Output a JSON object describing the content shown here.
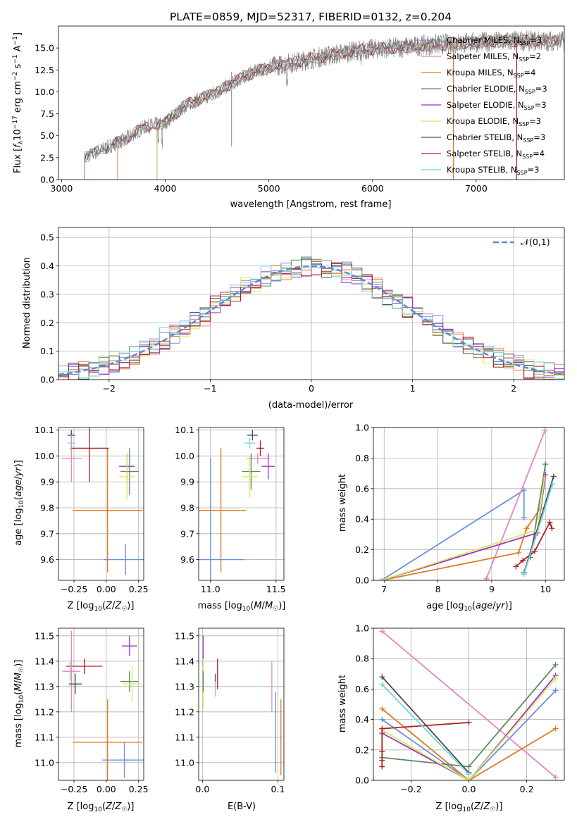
{
  "title": "PLATE=0859, MJD=52317, FIBERID=0132, z=0.204",
  "colors": {
    "Chabrier MILES": "#6a8fdf",
    "Salpeter MILES": "#e487c0",
    "Kroupa MILES": "#e07a1f",
    "Chabrier ELODIE": "#5a8a62",
    "Salpeter ELODIE": "#9f2fc2",
    "Kroupa ELODIE": "#d7ea5a",
    "Chabrier STELIB": "#4d4d4d",
    "Salpeter STELIB": "#b01f1f",
    "Kroupa STELIB": "#6fd6dc",
    "data_spectrum": "#7f7f7f"
  },
  "chart_data": [
    {
      "id": "spectrum",
      "type": "line",
      "title": "PLATE=0859, MJD=52317, FIBERID=0132, z=0.204",
      "xlabel": "wavelength [Angstrom, rest frame]",
      "ylabel": "Flux [f_λ 10^-17 erg cm^-2 s^-1 A^-1]",
      "xlim": [
        2970,
        7850
      ],
      "ylim": [
        0,
        17.5
      ],
      "xticks": [
        3000,
        4000,
        5000,
        6000,
        7000
      ],
      "yticks": [
        0.0,
        2.5,
        5.0,
        7.5,
        10.0,
        12.5,
        15.0
      ],
      "legend": "right",
      "grid": false,
      "series": [
        {
          "name": "Chabrier MILES, N_SSP=3",
          "label_base": "Chabrier MILES, N",
          "label_sub": "SSP",
          "label_end": "=3",
          "model": "Chabrier MILES",
          "start": 3540
        },
        {
          "name": "Salpeter MILES, N_SSP=2",
          "label_base": "Salpeter MILES, N",
          "label_sub": "SSP",
          "label_end": "=2",
          "model": "Salpeter MILES",
          "start": 3540
        },
        {
          "name": "Kroupa MILES, N_SSP=4",
          "label_base": "Kroupa MILES, N",
          "label_sub": "SSP",
          "label_end": "=4",
          "model": "Kroupa MILES",
          "start": 3540
        },
        {
          "name": "Chabrier ELODIE, N_SSP=3",
          "label_base": "Chabrier ELODIE, N",
          "label_sub": "SSP",
          "label_end": "=3",
          "model": "Chabrier ELODIE",
          "start": 3920
        },
        {
          "name": "Salpeter ELODIE, N_SSP=3",
          "label_base": "Salpeter ELODIE, N",
          "label_sub": "SSP",
          "label_end": "=3",
          "model": "Salpeter ELODIE",
          "start": 3920
        },
        {
          "name": "Kroupa ELODIE, N_SSP=3",
          "label_base": "Kroupa ELODIE, N",
          "label_sub": "SSP",
          "label_end": "=3",
          "model": "Kroupa ELODIE",
          "start": 3920
        },
        {
          "name": "Chabrier STELIB, N_SSP=3",
          "label_base": "Chabrier STELIB, N",
          "label_sub": "SSP",
          "label_end": "=3",
          "model": "Chabrier STELIB",
          "start": 3220
        },
        {
          "name": "Salpeter STELIB, N_SSP=4",
          "label_base": "Salpeter STELIB, N",
          "label_sub": "SSP",
          "label_end": "=4",
          "model": "Salpeter STELIB",
          "start": 3220
        },
        {
          "name": "Kroupa STELIB, N_SSP=3",
          "label_base": "Kroupa STELIB, N",
          "label_sub": "SSP",
          "label_end": "=3",
          "model": "Kroupa STELIB",
          "start": 3220
        }
      ],
      "continuum_knots": [
        [
          3220,
          2.5
        ],
        [
          3400,
          3.5
        ],
        [
          3600,
          4.5
        ],
        [
          3800,
          6.0
        ],
        [
          4000,
          6.5
        ],
        [
          4200,
          8.5
        ],
        [
          4500,
          10.0
        ],
        [
          4800,
          12.0
        ],
        [
          5000,
          12.8
        ],
        [
          5300,
          13.5
        ],
        [
          5600,
          14.2
        ],
        [
          5900,
          14.8
        ],
        [
          6200,
          15.0
        ],
        [
          6500,
          15.3
        ],
        [
          6800,
          15.5
        ],
        [
          7100,
          15.7
        ],
        [
          7400,
          15.8
        ]
      ]
    },
    {
      "id": "residuals",
      "type": "histogram",
      "xlabel": "(data-model)/error",
      "ylabel": "Normed distribution",
      "xlim": [
        -2.5,
        2.5
      ],
      "ylim": [
        0,
        0.535
      ],
      "xticks": [
        -2,
        -1,
        0,
        1,
        2
      ],
      "yticks": [
        0.0,
        0.1,
        0.2,
        0.3,
        0.4,
        0.5
      ],
      "grid": true,
      "legend": "top-right",
      "reference_label": "𝒩(0,1)",
      "reference_curve": "normal pdf, mean 0, sigma 1"
    },
    {
      "id": "z-age",
      "type": "scatter",
      "xlabel": "Z [log10(Z/Z☉)]",
      "ylabel": "age [log10(age/yr)]",
      "xlim": [
        -0.37,
        0.29
      ],
      "ylim": [
        9.52,
        10.11
      ],
      "xticks": [
        -0.25,
        0.0,
        0.25
      ],
      "yticks": [
        9.6,
        9.7,
        9.8,
        9.9,
        10.0,
        10.1
      ],
      "grid": true,
      "points": [
        {
          "model": "Chabrier MILES",
          "x": 0.15,
          "y": 9.6,
          "xerr": 0.17,
          "yerr": 0.06
        },
        {
          "model": "Kroupa MILES",
          "x": 0.01,
          "y": 9.79,
          "xerr": 0.27,
          "yerr": 0.24
        },
        {
          "model": "Chabrier STELIB",
          "x": -0.27,
          "y": 10.08,
          "xerr": 0.03,
          "yerr": 0.02
        },
        {
          "model": "Kroupa STELIB",
          "x": -0.27,
          "y": 10.05,
          "xerr": 0.03,
          "yerr": 0.02
        },
        {
          "model": "Salpeter STELIB",
          "x": -0.13,
          "y": 10.03,
          "xerr": 0.15,
          "yerr": 0.13
        },
        {
          "model": "Salpeter MILES",
          "x": -0.27,
          "y": 9.99,
          "xerr": 0.08,
          "yerr": 0.09
        },
        {
          "model": "Salpeter ELODIE",
          "x": 0.16,
          "y": 9.96,
          "xerr": 0.06,
          "yerr": 0.05
        },
        {
          "model": "Chabrier ELODIE",
          "x": 0.18,
          "y": 9.94,
          "xerr": 0.07,
          "yerr": 0.09
        },
        {
          "model": "Kroupa ELODIE",
          "x": 0.16,
          "y": 9.92,
          "xerr": 0.06,
          "yerr": 0.09
        }
      ]
    },
    {
      "id": "mass-age",
      "type": "scatter",
      "xlabel": "mass [log10(M/M☉)]",
      "ylabel": "",
      "xlim": [
        10.91,
        11.56
      ],
      "ylim": [
        9.52,
        10.11
      ],
      "xticks": [
        11.0,
        11.5
      ],
      "yticks": [
        9.6,
        9.7,
        9.8,
        9.9,
        10.0,
        10.1
      ],
      "grid": true,
      "points": [
        {
          "model": "Chabrier MILES",
          "x": 11.0,
          "y": 9.6,
          "xerr": 0.26,
          "yerr": 0.39
        },
        {
          "model": "Kroupa MILES",
          "x": 11.08,
          "y": 9.79,
          "xerr": 0.19,
          "yerr": 0.24
        },
        {
          "model": "Chabrier STELIB",
          "x": 11.32,
          "y": 10.08,
          "xerr": 0.04,
          "yerr": 0.02
        },
        {
          "model": "Kroupa STELIB",
          "x": 11.3,
          "y": 10.05,
          "xerr": 0.04,
          "yerr": 0.02
        },
        {
          "model": "Salpeter STELIB",
          "x": 11.38,
          "y": 10.03,
          "xerr": 0.03,
          "yerr": 0.03
        },
        {
          "model": "Salpeter MILES",
          "x": 11.36,
          "y": 9.99,
          "xerr": 0.08,
          "yerr": 0.02
        },
        {
          "model": "Salpeter ELODIE",
          "x": 11.44,
          "y": 9.96,
          "xerr": 0.05,
          "yerr": 0.05
        },
        {
          "model": "Chabrier ELODIE",
          "x": 11.31,
          "y": 9.94,
          "xerr": 0.07,
          "yerr": 0.07
        },
        {
          "model": "Kroupa ELODIE",
          "x": 11.3,
          "y": 9.92,
          "xerr": 0.06,
          "yerr": 0.08
        }
      ]
    },
    {
      "id": "age-weight",
      "type": "line",
      "xlabel": "age [log10(age/yr)]",
      "ylabel": "mass weight",
      "xlim": [
        6.8,
        10.35
      ],
      "ylim": [
        0,
        1.0
      ],
      "xticks": [
        7,
        8,
        9,
        10
      ],
      "yticks": [
        0.0,
        0.2,
        0.4,
        0.6,
        0.8,
        1.0
      ],
      "grid": true,
      "series": [
        {
          "model": "Chabrier MILES",
          "points": [
            [
              6.95,
              0.0
            ],
            [
              9.6,
              0.59
            ],
            [
              9.6,
              0.41
            ]
          ]
        },
        {
          "model": "Salpeter MILES",
          "points": [
            [
              8.9,
              0.01
            ],
            [
              9.99,
              0.98
            ]
          ]
        },
        {
          "model": "Kroupa MILES",
          "points": [
            [
              6.95,
              0.0
            ],
            [
              9.5,
              0.18
            ],
            [
              9.65,
              0.34
            ],
            [
              9.9,
              0.47
            ]
          ]
        },
        {
          "model": "Chabrier ELODIE",
          "points": [
            [
              9.72,
              0.15
            ],
            [
              10.0,
              0.76
            ]
          ]
        },
        {
          "model": "Salpeter ELODIE",
          "points": [
            [
              6.95,
              0.0
            ],
            [
              9.85,
              0.31
            ],
            [
              10.0,
              0.69
            ]
          ]
        },
        {
          "model": "Kroupa ELODIE",
          "points": [
            [
              6.95,
              0.0
            ],
            [
              9.85,
              0.33
            ],
            [
              9.98,
              0.67
            ]
          ]
        },
        {
          "model": "Chabrier STELIB",
          "points": [
            [
              9.6,
              0.05
            ],
            [
              10.15,
              0.68
            ]
          ]
        },
        {
          "model": "Salpeter STELIB",
          "points": [
            [
              9.45,
              0.09
            ],
            [
              9.58,
              0.13
            ],
            [
              9.8,
              0.19
            ],
            [
              10.08,
              0.38
            ],
            [
              10.12,
              0.34
            ]
          ]
        },
        {
          "model": "Kroupa STELIB",
          "points": [
            [
              9.6,
              0.04
            ],
            [
              10.13,
              0.63
            ]
          ]
        }
      ]
    },
    {
      "id": "z-mass",
      "type": "scatter",
      "xlabel": "Z [log10(Z/Z☉)]",
      "ylabel": "mass [log10(M/M☉)]",
      "xlim": [
        -0.37,
        0.29
      ],
      "ylim": [
        10.93,
        11.53
      ],
      "xticks": [
        -0.25,
        0.0,
        0.25
      ],
      "yticks": [
        11.0,
        11.1,
        11.2,
        11.3,
        11.4,
        11.5
      ],
      "grid": true,
      "points": [
        {
          "model": "Chabrier MILES",
          "x": 0.14,
          "y": 11.01,
          "xerr": 0.17,
          "yerr": 0.07
        },
        {
          "model": "Kroupa MILES",
          "x": 0.01,
          "y": 11.08,
          "xerr": 0.27,
          "yerr": 0.17
        },
        {
          "model": "Salpeter STELIB",
          "x": -0.17,
          "y": 11.38,
          "xerr": 0.14,
          "yerr": 0.03
        },
        {
          "model": "Kroupa STELIB",
          "x": -0.28,
          "y": 11.36,
          "xerr": 0.03,
          "yerr": 0.04
        },
        {
          "model": "Salpeter MILES",
          "x": -0.27,
          "y": 11.36,
          "xerr": 0.07,
          "yerr": 0.16
        },
        {
          "model": "Chabrier STELIB",
          "x": -0.24,
          "y": 11.31,
          "xerr": 0.05,
          "yerr": 0.04
        },
        {
          "model": "Salpeter ELODIE",
          "x": 0.18,
          "y": 11.46,
          "xerr": 0.06,
          "yerr": 0.04
        },
        {
          "model": "Chabrier ELODIE",
          "x": 0.18,
          "y": 11.32,
          "xerr": 0.07,
          "yerr": 0.04
        },
        {
          "model": "Kroupa ELODIE",
          "x": 0.2,
          "y": 11.31,
          "xerr": 0.07,
          "yerr": 0.07
        }
      ]
    },
    {
      "id": "ebv-mass",
      "type": "scatter",
      "xlabel": "E(B-V)",
      "ylabel": "",
      "xlim": [
        -0.005,
        0.108
      ],
      "ylim": [
        10.93,
        11.53
      ],
      "xticks": [
        0.0,
        0.1
      ],
      "yticks": [
        11.0,
        11.1,
        11.2,
        11.3,
        11.4,
        11.5
      ],
      "grid": true,
      "points": [
        {
          "model": "Salpeter ELODIE",
          "x": 0.001,
          "y": 11.44,
          "yerr": 0.06
        },
        {
          "model": "Kroupa ELODIE",
          "x": 0.001,
          "y": 11.31,
          "yerr": 0.1
        },
        {
          "model": "Chabrier ELODIE",
          "x": 0.001,
          "y": 11.32,
          "yerr": 0.04
        },
        {
          "model": "Salpeter STELIB",
          "x": 0.02,
          "y": 11.35,
          "yerr": 0.06
        },
        {
          "model": "Chabrier STELIB",
          "x": 0.017,
          "y": 11.32,
          "yerr": 0.03
        },
        {
          "model": "Kroupa STELIB",
          "x": 0.017,
          "y": 11.29,
          "yerr": 0.03
        },
        {
          "model": "Salpeter MILES",
          "x": 0.092,
          "y": 11.3,
          "yerr": 0.1
        },
        {
          "model": "Chabrier MILES",
          "x": 0.097,
          "y": 11.12,
          "yerr": 0.16
        },
        {
          "model": "Kroupa MILES",
          "x": 0.104,
          "y": 11.1,
          "yerr": 0.15
        }
      ]
    },
    {
      "id": "z-weight",
      "type": "line",
      "xlabel": "Z [log10(Z/Z☉)]",
      "ylabel": "mass weight",
      "xlim": [
        -0.33,
        0.33
      ],
      "ylim": [
        0,
        1.0
      ],
      "xticks": [
        -0.2,
        0.0,
        0.2
      ],
      "yticks": [
        0.0,
        0.2,
        0.4,
        0.6,
        0.8,
        1.0
      ],
      "grid": true,
      "series": [
        {
          "model": "Chabrier MILES",
          "points": [
            [
              -0.3,
              0.4
            ],
            [
              0.0,
              0.0
            ],
            [
              0.3,
              0.59
            ]
          ]
        },
        {
          "model": "Salpeter MILES",
          "points": [
            [
              -0.3,
              0.98
            ],
            [
              0.3,
              0.02
            ]
          ]
        },
        {
          "model": "Kroupa MILES",
          "points": [
            [
              -0.3,
              0.47
            ],
            [
              0.0,
              0.0
            ],
            [
              0.3,
              0.34
            ]
          ]
        },
        {
          "model": "Chabrier ELODIE",
          "points": [
            [
              -0.3,
              0.15
            ],
            [
              0.0,
              0.09
            ],
            [
              0.3,
              0.76
            ]
          ]
        },
        {
          "model": "Salpeter ELODIE",
          "points": [
            [
              -0.3,
              0.31
            ],
            [
              0.0,
              0.0
            ],
            [
              0.3,
              0.69
            ]
          ]
        },
        {
          "model": "Kroupa ELODIE",
          "points": [
            [
              -0.3,
              0.33
            ],
            [
              0.0,
              0.0
            ],
            [
              0.3,
              0.67
            ]
          ]
        },
        {
          "model": "Chabrier STELIB",
          "points": [
            [
              -0.3,
              0.68
            ],
            [
              0.0,
              0.05
            ]
          ]
        },
        {
          "model": "Salpeter STELIB",
          "points": [
            [
              -0.3,
              0.09
            ],
            [
              -0.3,
              0.13
            ],
            [
              -0.3,
              0.19
            ],
            [
              -0.3,
              0.34
            ],
            [
              0.0,
              0.38
            ]
          ]
        },
        {
          "model": "Kroupa STELIB",
          "points": [
            [
              -0.3,
              0.63
            ],
            [
              0.0,
              0.04
            ]
          ]
        }
      ]
    }
  ]
}
